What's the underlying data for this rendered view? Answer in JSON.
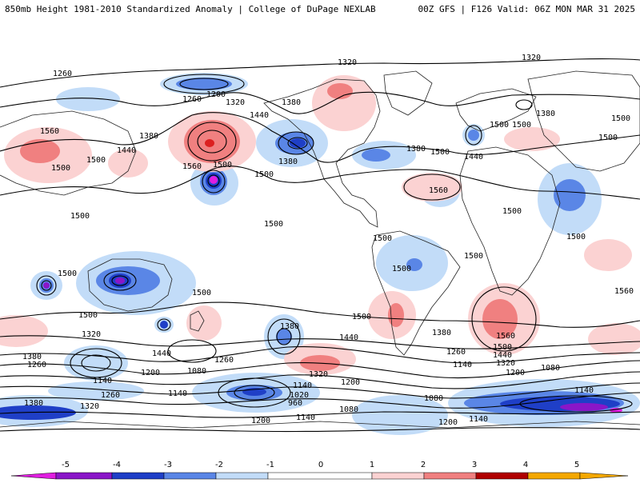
{
  "header": {
    "title": "850mb Height 1981-2010 Standardized Anomaly | College of DuPage NEXLAB",
    "run_info": "00Z GFS | F126 Valid: 06Z MON MAR 31 2025"
  },
  "colors": {
    "anom_neg_5": "#e01ee0",
    "anom_neg_4": "#8a16c8",
    "anom_neg_3": "#1f3fc7",
    "anom_neg_2": "#5a86e6",
    "anom_neg_1": "#c2dcf8",
    "anom_pos_1": "#fbd2d2",
    "anom_pos_2": "#f08080",
    "anom_pos_3": "#dc2020",
    "anom_pos_4": "#b00000",
    "anom_pos_5": "#f4a800",
    "contour": "#000000",
    "land_outline": "#222222"
  },
  "legend": {
    "ticks": [
      "-5",
      "-4",
      "-3",
      "-2",
      "-1",
      "0",
      "1",
      "2",
      "3",
      "4",
      "5"
    ]
  },
  "contour_labels": [
    "1260",
    "1200",
    "1260",
    "1320",
    "1380",
    "1440",
    "1380",
    "1320",
    "1320",
    "1380",
    "1500",
    "1500",
    "1560",
    "1440",
    "1500",
    "1380",
    "1500",
    "1560",
    "1500",
    "1500",
    "1380",
    "1500",
    "1500",
    "1440",
    "1500",
    "1560",
    "1500",
    "1500",
    "1500",
    "1500",
    "1500",
    "1500",
    "1500",
    "1500",
    "1500",
    "1560",
    "1500",
    "1500",
    "1380",
    "1440",
    "1380",
    "1560",
    "1500",
    "1440",
    "1320",
    "1380",
    "1260",
    "1440",
    "1260",
    "1320",
    "1260",
    "1140",
    "1320",
    "1200",
    "1140",
    "1200",
    "1080",
    "1140",
    "1200",
    "1020",
    "1140",
    "1080",
    "1080",
    "1140",
    "1380",
    "1320",
    "1260",
    "960",
    "1200",
    "1140",
    "1080",
    "1200",
    "1140"
  ]
}
